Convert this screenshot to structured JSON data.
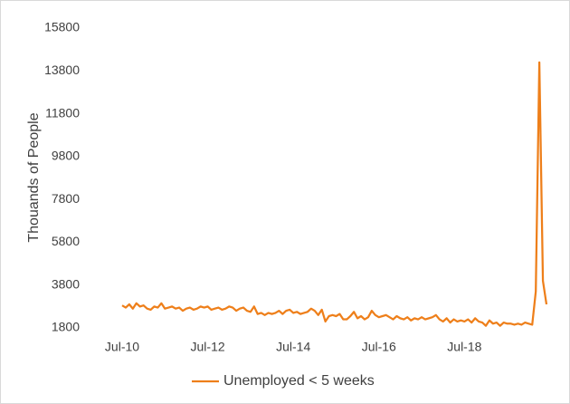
{
  "chart_data": {
    "type": "line",
    "ylabel": "Thouands of People",
    "categories": [
      "Jul-10",
      null,
      null,
      null,
      null,
      null,
      null,
      null,
      null,
      null,
      null,
      null,
      null,
      null,
      null,
      null,
      null,
      null,
      null,
      null,
      null,
      null,
      null,
      null,
      "Jul-12",
      null,
      null,
      null,
      null,
      null,
      null,
      null,
      null,
      null,
      null,
      null,
      null,
      null,
      null,
      null,
      null,
      null,
      null,
      null,
      null,
      null,
      null,
      null,
      "Jul-14",
      null,
      null,
      null,
      null,
      null,
      null,
      null,
      null,
      null,
      null,
      null,
      null,
      null,
      null,
      null,
      null,
      null,
      null,
      null,
      null,
      null,
      null,
      null,
      "Jul-16",
      null,
      null,
      null,
      null,
      null,
      null,
      null,
      null,
      null,
      null,
      null,
      null,
      null,
      null,
      null,
      null,
      null,
      null,
      null,
      null,
      null,
      null,
      null,
      "Jul-18",
      null,
      null,
      null,
      null,
      null,
      null,
      null,
      null,
      null,
      null,
      null,
      null,
      null,
      null,
      null,
      null,
      null,
      null,
      null,
      null,
      null,
      null,
      null
    ],
    "series": [
      {
        "name": "Unemployed < 5 weeks",
        "color": "#ee7f1a",
        "values": [
          2850,
          2750,
          2900,
          2700,
          2950,
          2800,
          2850,
          2700,
          2650,
          2800,
          2750,
          2950,
          2700,
          2750,
          2800,
          2700,
          2750,
          2600,
          2700,
          2750,
          2650,
          2700,
          2800,
          2750,
          2800,
          2650,
          2700,
          2750,
          2650,
          2700,
          2800,
          2750,
          2600,
          2700,
          2750,
          2600,
          2550,
          2800,
          2450,
          2500,
          2400,
          2500,
          2450,
          2500,
          2600,
          2450,
          2600,
          2650,
          2500,
          2550,
          2450,
          2500,
          2550,
          2700,
          2600,
          2400,
          2650,
          2100,
          2350,
          2400,
          2350,
          2450,
          2200,
          2200,
          2350,
          2550,
          2250,
          2350,
          2200,
          2300,
          2600,
          2400,
          2300,
          2350,
          2400,
          2300,
          2200,
          2350,
          2250,
          2200,
          2300,
          2150,
          2250,
          2200,
          2300,
          2200,
          2250,
          2300,
          2400,
          2200,
          2100,
          2250,
          2050,
          2200,
          2100,
          2150,
          2100,
          2200,
          2050,
          2250,
          2100,
          2050,
          1900,
          2150,
          2000,
          2050,
          1900,
          2050,
          2000,
          2000,
          1950,
          2000,
          1950,
          2050,
          2000,
          1950,
          3500,
          14200,
          4000,
          2900
        ]
      }
    ],
    "ylim": [
      1800,
      15800
    ],
    "yticks": [
      1800,
      3800,
      5800,
      7800,
      9800,
      11800,
      13800,
      15800
    ],
    "legend": "bottom"
  }
}
